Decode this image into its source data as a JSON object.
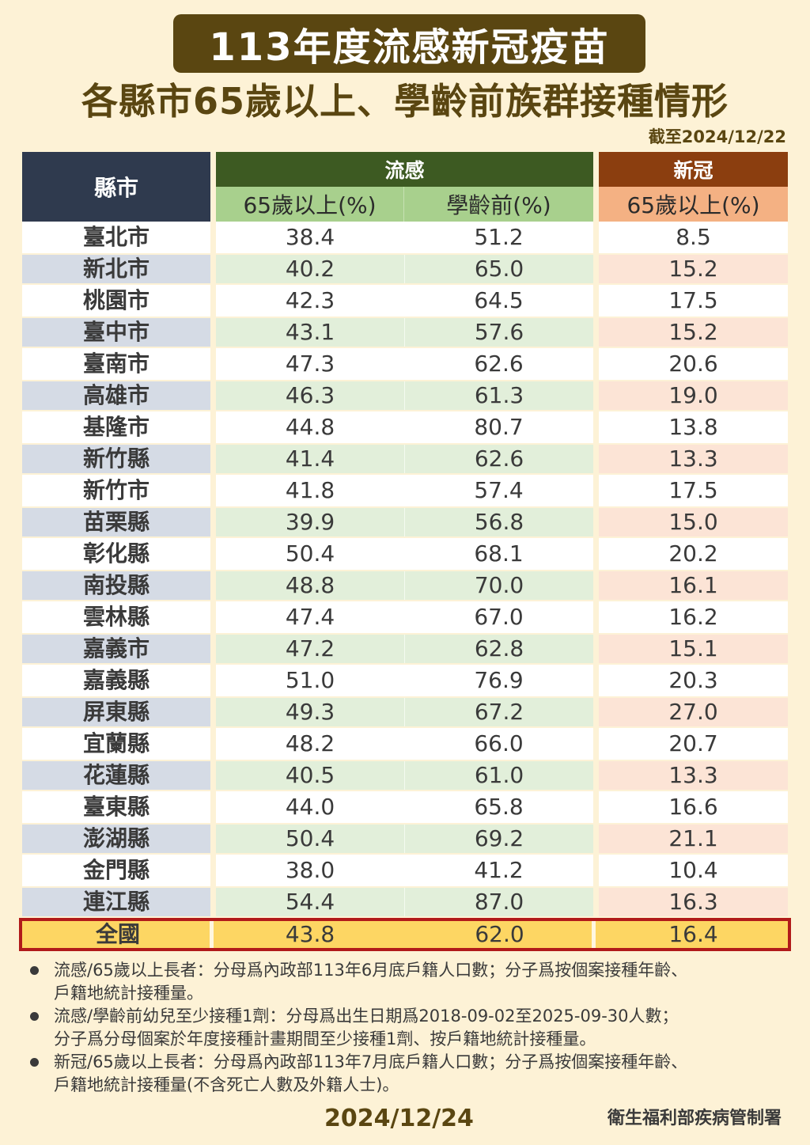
{
  "header": {
    "title": "113年度流感新冠疫苗",
    "subtitle": "各縣市65歲以上、學齡前族群接種情形",
    "as_of": "截至2024/12/22"
  },
  "table": {
    "county_header": "縣市",
    "flu_group": "流感",
    "covid_group": "新冠",
    "flu_65_header": "65歲以上(%)",
    "flu_preschool_header": "學齡前(%)",
    "covid_65_header": "65歲以上(%)",
    "rows": [
      {
        "county": "臺北市",
        "flu_65": "38.4",
        "flu_preschool": "51.2",
        "covid_65": "8.5"
      },
      {
        "county": "新北市",
        "flu_65": "40.2",
        "flu_preschool": "65.0",
        "covid_65": "15.2"
      },
      {
        "county": "桃園市",
        "flu_65": "42.3",
        "flu_preschool": "64.5",
        "covid_65": "17.5"
      },
      {
        "county": "臺中市",
        "flu_65": "43.1",
        "flu_preschool": "57.6",
        "covid_65": "15.2"
      },
      {
        "county": "臺南市",
        "flu_65": "47.3",
        "flu_preschool": "62.6",
        "covid_65": "20.6"
      },
      {
        "county": "高雄市",
        "flu_65": "46.3",
        "flu_preschool": "61.3",
        "covid_65": "19.0"
      },
      {
        "county": "基隆市",
        "flu_65": "44.8",
        "flu_preschool": "80.7",
        "covid_65": "13.8"
      },
      {
        "county": "新竹縣",
        "flu_65": "41.4",
        "flu_preschool": "62.6",
        "covid_65": "13.3"
      },
      {
        "county": "新竹市",
        "flu_65": "41.8",
        "flu_preschool": "57.4",
        "covid_65": "17.5"
      },
      {
        "county": "苗栗縣",
        "flu_65": "39.9",
        "flu_preschool": "56.8",
        "covid_65": "15.0"
      },
      {
        "county": "彰化縣",
        "flu_65": "50.4",
        "flu_preschool": "68.1",
        "covid_65": "20.2"
      },
      {
        "county": "南投縣",
        "flu_65": "48.8",
        "flu_preschool": "70.0",
        "covid_65": "16.1"
      },
      {
        "county": "雲林縣",
        "flu_65": "47.4",
        "flu_preschool": "67.0",
        "covid_65": "16.2"
      },
      {
        "county": "嘉義市",
        "flu_65": "47.2",
        "flu_preschool": "62.8",
        "covid_65": "15.1"
      },
      {
        "county": "嘉義縣",
        "flu_65": "51.0",
        "flu_preschool": "76.9",
        "covid_65": "20.3"
      },
      {
        "county": "屏東縣",
        "flu_65": "49.3",
        "flu_preschool": "67.2",
        "covid_65": "27.0"
      },
      {
        "county": "宜蘭縣",
        "flu_65": "48.2",
        "flu_preschool": "66.0",
        "covid_65": "20.7"
      },
      {
        "county": "花蓮縣",
        "flu_65": "40.5",
        "flu_preschool": "61.0",
        "covid_65": "13.3"
      },
      {
        "county": "臺東縣",
        "flu_65": "44.0",
        "flu_preschool": "65.8",
        "covid_65": "16.6"
      },
      {
        "county": "澎湖縣",
        "flu_65": "50.4",
        "flu_preschool": "69.2",
        "covid_65": "21.1"
      },
      {
        "county": "金門縣",
        "flu_65": "38.0",
        "flu_preschool": "41.2",
        "covid_65": "10.4"
      },
      {
        "county": "連江縣",
        "flu_65": "54.4",
        "flu_preschool": "87.0",
        "covid_65": "16.3"
      }
    ],
    "total": {
      "county": "全國",
      "flu_65": "43.8",
      "flu_preschool": "62.0",
      "covid_65": "16.4"
    }
  },
  "notes": [
    {
      "line1": "流感/65歲以上長者：分母爲內政部113年6月底戶籍人口數；分子爲按個案接種年齡、",
      "line2": "戶籍地統計接種量。"
    },
    {
      "line1": "流感/學齡前幼兒至少接種1劑：分母爲出生日期爲2018-09-02至2025-09-30人數；",
      "line2": "分子爲分母個案於年度接種計畫期間至少接種1劑、按戶籍地統計接種量。"
    },
    {
      "line1": "新冠/65歲以上長者：分母爲內政部113年7月底戶籍人口數；分子爲按個案接種年齡、",
      "line2": "戶籍地統計接種量(不含死亡人數及外籍人士)。"
    }
  ],
  "footer": {
    "date": "2024/12/24",
    "org": "衛生福利部疾病管制署"
  },
  "colors": {
    "background": "#fdf2d6",
    "title_box": "#5a4611",
    "county_header": "#2f3a4e",
    "flu_header": "#3d5a22",
    "flu_subheader": "#a8d08d",
    "flu_row_tint": "#e2efda",
    "covid_header": "#8b3e0f",
    "covid_subheader": "#f4b183",
    "covid_row_tint": "#fce4d6",
    "county_row_tint": "#d5dbe5",
    "total_fill": "#fdd663",
    "total_border": "#b11a1a"
  }
}
